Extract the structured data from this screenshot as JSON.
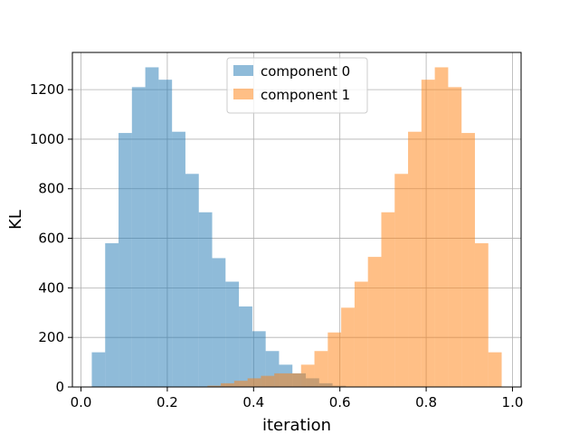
{
  "chart_data": {
    "type": "histogram",
    "title": "",
    "xlabel": "iteration",
    "ylabel": "KL",
    "xlim": [
      -0.02,
      1.02
    ],
    "ylim": [
      0,
      1350
    ],
    "xticks": [
      0.0,
      0.2,
      0.4,
      0.6,
      0.8,
      1.0
    ],
    "xtick_labels": [
      "0.0",
      "0.2",
      "0.4",
      "0.6",
      "0.8",
      "1.0"
    ],
    "yticks": [
      0,
      200,
      400,
      600,
      800,
      1000,
      1200
    ],
    "ytick_labels": [
      "0",
      "200",
      "400",
      "600",
      "800",
      "1000",
      "1200"
    ],
    "grid": true,
    "legend_position": "top-center",
    "bin_width": 0.031,
    "series": [
      {
        "name": "component 0",
        "color": "#1f77b4",
        "alpha": 0.5,
        "bin_starts": [
          0.025,
          0.056,
          0.087,
          0.118,
          0.149,
          0.18,
          0.211,
          0.242,
          0.273,
          0.304,
          0.335,
          0.366,
          0.397,
          0.428,
          0.459,
          0.49,
          0.521,
          0.552,
          0.583
        ],
        "counts": [
          140,
          580,
          1025,
          1210,
          1290,
          1240,
          1030,
          860,
          705,
          520,
          425,
          325,
          225,
          145,
          90,
          55,
          35,
          15,
          5
        ]
      },
      {
        "name": "component 1",
        "color": "#ff7f0e",
        "alpha": 0.5,
        "bin_starts": [
          0.293,
          0.324,
          0.355,
          0.386,
          0.417,
          0.448,
          0.479,
          0.51,
          0.541,
          0.572,
          0.603,
          0.634,
          0.665,
          0.696,
          0.727,
          0.758,
          0.789,
          0.82,
          0.851,
          0.882,
          0.913,
          0.944
        ],
        "counts": [
          5,
          15,
          25,
          35,
          45,
          55,
          55,
          90,
          145,
          220,
          320,
          425,
          525,
          705,
          860,
          1030,
          1240,
          1290,
          1210,
          1025,
          580,
          140
        ]
      }
    ]
  }
}
